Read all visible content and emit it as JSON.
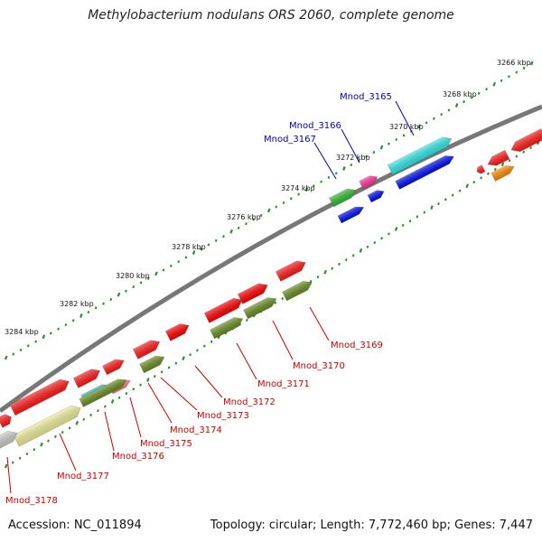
{
  "title": "Methylobacterium nodulans ORS 2060, complete genome",
  "footer": {
    "accession": "Accession: NC_011894",
    "topology": "Topology: circular; Length: 7,772,460 bp; Genes: 7,447"
  },
  "scale_labels": [
    "3266 kbp",
    "3268 kbp",
    "3270 kbp",
    "3272 kbp",
    "3274 kbp",
    "3276 kbp",
    "3278 kbp",
    "3280 kbp",
    "3282 kbp",
    "3284 kbp"
  ],
  "colors": {
    "backbone": "#777777",
    "tick": "#2f8a2f",
    "label_forward": "#0000bb",
    "label_reverse": "#cc0000"
  },
  "genes_forward": [
    {
      "label": "Mnod_3165",
      "color": "#33e6e6"
    },
    {
      "label": "Mnod_3166",
      "color": "#ff3399"
    },
    {
      "label": "Mnod_3167",
      "color": "#33bb33"
    }
  ],
  "genes_reverse": [
    {
      "label": "Mnod_3169",
      "color": "#6b8e23"
    },
    {
      "label": "Mnod_3170",
      "color": "#ff0000"
    },
    {
      "label": "Mnod_3171",
      "color": "#6b8e23"
    },
    {
      "label": "Mnod_3172",
      "color": "#ff0000"
    },
    {
      "label": "Mnod_3173",
      "color": "#6b8e23"
    },
    {
      "label": "Mnod_3174",
      "color": "#ff0000"
    },
    {
      "label": "Mnod_3175",
      "color": "#ff8080"
    },
    {
      "label": "Mnod_3176",
      "color": "#ff0000"
    },
    {
      "label": "Mnod_3177",
      "color": "#eeee99"
    },
    {
      "label": "Mnod_3178",
      "color": "#cccccc"
    }
  ]
}
